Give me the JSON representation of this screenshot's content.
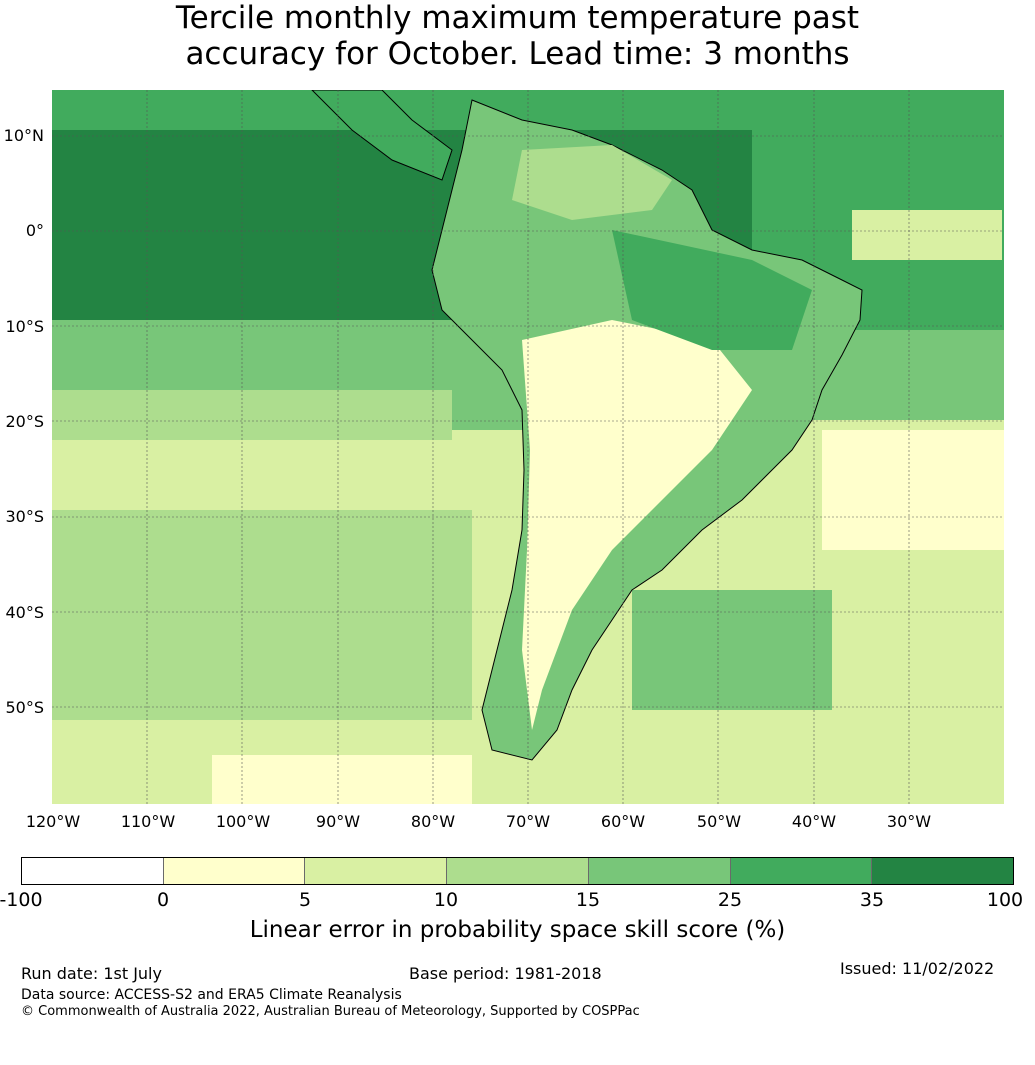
{
  "title_line1": "Tercile monthly maximum temperature past",
  "title_line2": "accuracy for October. Lead time: 3 months",
  "lat_labels": [
    "10°N",
    "0°",
    "10°S",
    "20°S",
    "30°S",
    "40°S",
    "50°S"
  ],
  "lon_labels": [
    "120°W",
    "110°W",
    "100°W",
    "90°W",
    "80°W",
    "70°W",
    "60°W",
    "50°W",
    "40°W",
    "30°W"
  ],
  "colorbar": {
    "ticks": [
      "-100",
      "0",
      "5",
      "10",
      "15",
      "25",
      "35",
      "100"
    ],
    "colors": [
      "#ffffff",
      "#ffffcc",
      "#d9f0a3",
      "#addd8e",
      "#78c679",
      "#41ab5d",
      "#238443"
    ],
    "label": "Linear error in probability space skill score (%)"
  },
  "footer": {
    "run_date": "Run date: 1st July",
    "base_period": "Base period: 1981-2018",
    "issued": "Issued: 11/02/2022",
    "data_source": "Data source: ACCESS-S2 and ERA5 Climate Reanalysis",
    "copyright": "© Commonwealth of Australia 2022, Australian Bureau of Meteorology, Supported by COSPPac"
  }
}
